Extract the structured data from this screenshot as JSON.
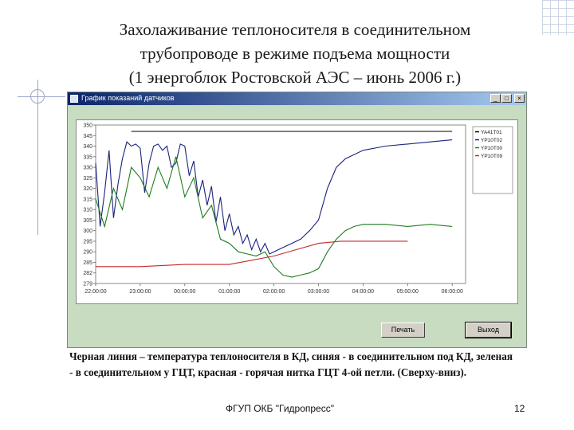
{
  "slide": {
    "title_lines": [
      "Захолаживание теплоносителя в соединительном",
      "трубопроводе в режиме подъема мощности",
      "(1 энергоблок Ростовской АЭС – июнь 2006 г.)"
    ],
    "caption": "Черная линия – температура теплоносителя в КД, синяя - в соединительном под КД, зеленая - в соединительном у ГЦТ, красная - горячая нитка ГЦТ 4-ой петли. (Сверху-вниз).",
    "footer_org": "ФГУП ОКБ \"Гидропресс\"",
    "page_number": "12"
  },
  "window": {
    "title": "График показаний датчиков",
    "minimize_label": "_",
    "maximize_label": "□",
    "close_label": "×",
    "print_button": "Печать",
    "exit_button": "Выход"
  },
  "colors": {
    "black": "#000000",
    "blue": "#1a237e",
    "green": "#1e7d1e",
    "red": "#c62828",
    "window_bg": "#c7dcc0"
  },
  "chart_data": {
    "type": "line",
    "ylim": [
      275,
      350
    ],
    "y_ticks": [
      "350",
      "345",
      "340",
      "335",
      "330",
      "325",
      "320",
      "315",
      "310",
      "305",
      "300",
      "295",
      "290",
      "285",
      "282",
      "279"
    ],
    "x_ticks": [
      "22:00:00",
      "23:00:00",
      "00:00:00",
      "01:00:00",
      "02:00:00",
      "03:00:00",
      "04:00:00",
      "05:00:00",
      "06:00:00"
    ],
    "legend": [
      "YA41T01",
      "YP10T02",
      "YP10T00",
      "YP10T09"
    ],
    "series": [
      {
        "name": "YA41T01",
        "color": "#000000",
        "x": [
          0.8,
          8.0
        ],
        "y": [
          347,
          347
        ]
      },
      {
        "name": "YP10T02",
        "color": "#1a237e",
        "x": [
          0,
          0.1,
          0.2,
          0.3,
          0.4,
          0.5,
          0.6,
          0.7,
          0.8,
          0.9,
          1.0,
          1.1,
          1.2,
          1.3,
          1.4,
          1.5,
          1.6,
          1.7,
          1.8,
          1.9,
          2.0,
          2.1,
          2.2,
          2.3,
          2.4,
          2.5,
          2.6,
          2.7,
          2.8,
          2.9,
          3.0,
          3.1,
          3.2,
          3.3,
          3.4,
          3.5,
          3.6,
          3.7,
          3.8,
          3.9,
          4.0,
          4.2,
          4.4,
          4.6,
          4.8,
          5.0,
          5.2,
          5.4,
          5.6,
          5.8,
          6.0,
          6.5,
          7.0,
          7.5,
          8.0
        ],
        "y": [
          332,
          302,
          318,
          338,
          306,
          322,
          334,
          342,
          340,
          341,
          339,
          318,
          332,
          340,
          341,
          338,
          340,
          330,
          332,
          341,
          340,
          326,
          333,
          316,
          324,
          312,
          321,
          304,
          316,
          300,
          308,
          298,
          302,
          294,
          298,
          291,
          296,
          290,
          294,
          289,
          290,
          292,
          294,
          296,
          300,
          305,
          320,
          330,
          334,
          336,
          338,
          340,
          341,
          342,
          343
        ]
      },
      {
        "name": "YP10T00",
        "color": "#1e7d1e",
        "x": [
          0,
          0.2,
          0.4,
          0.6,
          0.8,
          1.0,
          1.2,
          1.4,
          1.6,
          1.8,
          2.0,
          2.2,
          2.4,
          2.6,
          2.8,
          3.0,
          3.2,
          3.4,
          3.6,
          3.8,
          4.0,
          4.2,
          4.4,
          4.6,
          4.8,
          5.0,
          5.2,
          5.4,
          5.6,
          5.8,
          6.0,
          6.5,
          7.0,
          7.5,
          8.0
        ],
        "y": [
          315,
          302,
          320,
          310,
          330,
          325,
          316,
          330,
          320,
          335,
          316,
          325,
          306,
          312,
          296,
          294,
          290,
          289,
          288,
          290,
          283,
          279,
          278,
          279,
          280,
          282,
          290,
          296,
          300,
          302,
          303,
          303,
          302,
          303,
          302
        ]
      },
      {
        "name": "YP10T09",
        "color": "#c62828",
        "x": [
          0,
          1.0,
          2.0,
          3.0,
          3.5,
          4.0,
          4.5,
          5.0,
          5.5,
          6.0,
          6.5,
          7.0
        ],
        "y": [
          283,
          283,
          284,
          284,
          286,
          288,
          291,
          294,
          295,
          295,
          295,
          295
        ]
      }
    ],
    "xlim": [
      0,
      8.3
    ]
  }
}
